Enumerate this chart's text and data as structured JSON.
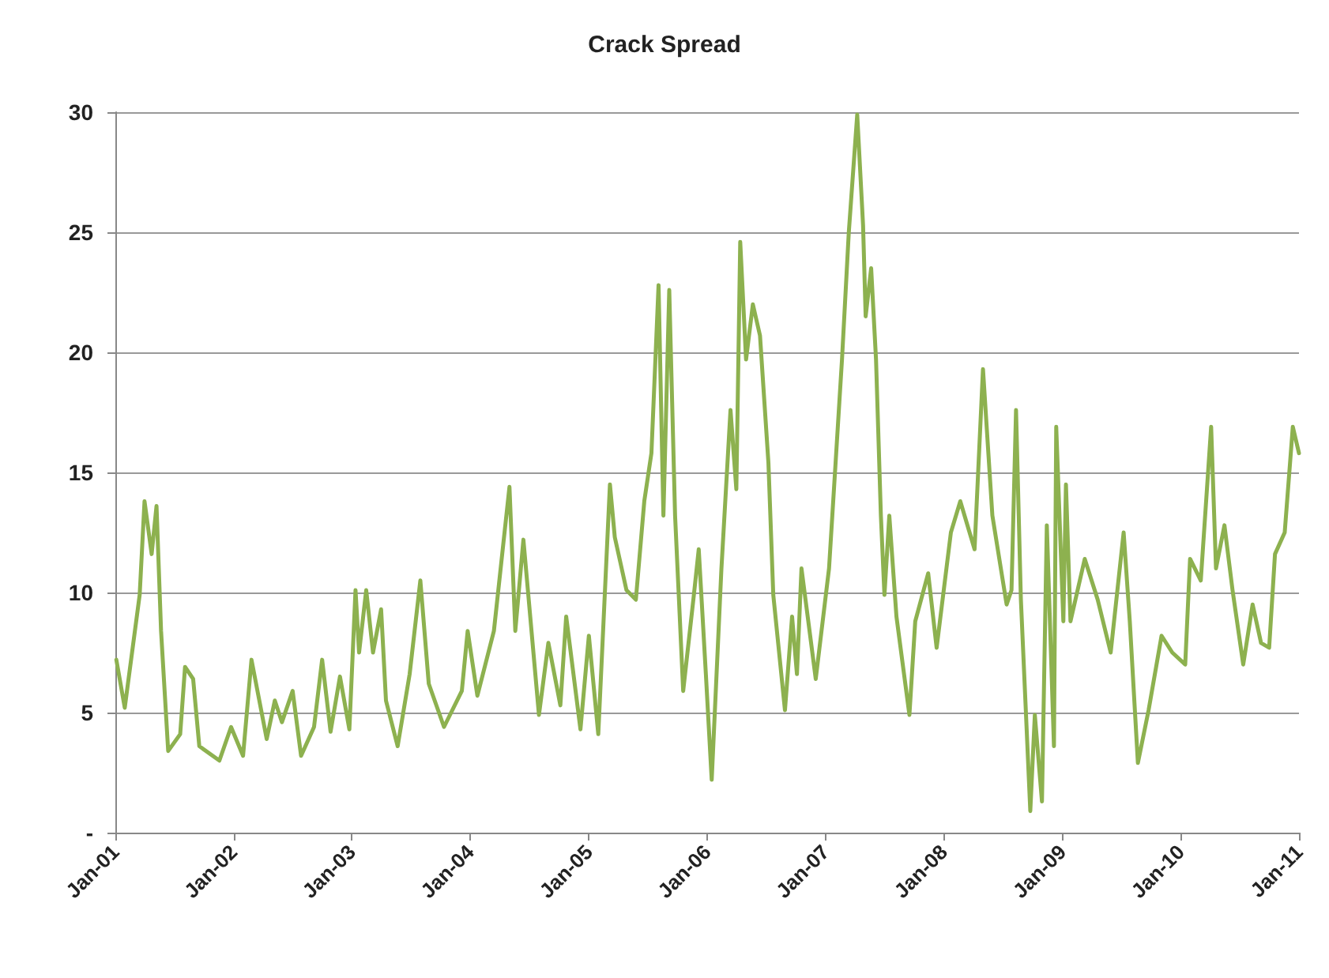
{
  "chart_data": {
    "type": "line",
    "title": "Crack Spread",
    "xlim": [
      "2001-01-01",
      "2011-01-01"
    ],
    "xticks": [
      {
        "value": "2001-01-01",
        "label": "Jan-01"
      },
      {
        "value": "2002-01-01",
        "label": "Jan-02"
      },
      {
        "value": "2003-01-01",
        "label": "Jan-03"
      },
      {
        "value": "2004-01-01",
        "label": "Jan-04"
      },
      {
        "value": "2005-01-01",
        "label": "Jan-05"
      },
      {
        "value": "2006-01-01",
        "label": "Jan-06"
      },
      {
        "value": "2007-01-01",
        "label": "Jan-07"
      },
      {
        "value": "2008-01-01",
        "label": "Jan-08"
      },
      {
        "value": "2009-01-01",
        "label": "Jan-09"
      },
      {
        "value": "2010-01-01",
        "label": "Jan-10"
      },
      {
        "value": "2011-01-01",
        "label": "Jan-11"
      }
    ],
    "ylim": [
      0,
      30
    ],
    "yticks": [
      {
        "value": 0,
        "label": "-"
      },
      5,
      10,
      15,
      20,
      25,
      30
    ],
    "grid": "y",
    "marker": "none",
    "line_style": "solid",
    "series": [
      {
        "color": "#8db14f",
        "x": [
          "2001-01-04",
          "2001-01-30",
          "2001-03-17",
          "2001-04-01",
          "2001-04-23",
          "2001-05-08",
          "2001-05-22",
          "2001-06-13",
          "2001-07-20",
          "2001-08-04",
          "2001-08-29",
          "2001-09-17",
          "2001-11-18",
          "2001-12-24",
          "2002-01-30",
          "2002-02-25",
          "2002-04-13",
          "2002-05-08",
          "2002-05-30",
          "2002-07-02",
          "2002-07-28",
          "2002-09-06",
          "2002-10-01",
          "2002-10-27",
          "2002-11-25",
          "2002-12-24",
          "2003-01-12",
          "2003-01-23",
          "2003-02-14",
          "2003-03-07",
          "2003-04-01",
          "2003-04-16",
          "2003-05-22",
          "2003-06-28",
          "2003-07-31",
          "2003-08-26",
          "2003-10-12",
          "2003-12-06",
          "2003-12-24",
          "2004-01-23",
          "2004-03-14",
          "2004-05-01",
          "2004-05-19",
          "2004-06-13",
          "2004-07-31",
          "2004-08-29",
          "2004-10-05",
          "2004-10-23",
          "2004-12-06",
          "2005-01-01",
          "2005-01-30",
          "2005-03-07",
          "2005-03-22",
          "2005-04-27",
          "2005-05-26",
          "2005-06-21",
          "2005-07-13",
          "2005-08-04",
          "2005-08-19",
          "2005-09-06",
          "2005-09-24",
          "2005-10-19",
          "2005-11-21",
          "2005-12-06",
          "2005-12-28",
          "2006-01-15",
          "2006-02-14",
          "2006-03-14",
          "2006-04-01",
          "2006-04-13",
          "2006-05-01",
          "2006-05-22",
          "2006-06-13",
          "2006-07-09",
          "2006-07-24",
          "2006-08-29",
          "2006-09-20",
          "2006-10-05",
          "2006-10-19",
          "2006-12-02",
          "2007-01-12",
          "2007-02-21",
          "2007-03-14",
          "2007-04-09",
          "2007-04-27",
          "2007-05-05",
          "2007-05-22",
          "2007-06-06",
          "2007-06-21",
          "2007-07-02",
          "2007-07-17",
          "2007-08-08",
          "2007-09-17",
          "2007-10-05",
          "2007-11-14",
          "2007-12-10",
          "2008-01-23",
          "2008-02-21",
          "2008-04-05",
          "2008-05-01",
          "2008-05-30",
          "2008-07-13",
          "2008-07-28",
          "2008-08-11",
          "2008-08-26",
          "2008-09-24",
          "2008-10-08",
          "2008-10-30",
          "2008-11-14",
          "2008-12-06",
          "2008-12-13",
          "2009-01-04",
          "2009-01-12",
          "2009-01-26",
          "2009-03-11",
          "2009-04-20",
          "2009-05-30",
          "2009-07-09",
          "2009-07-28",
          "2009-08-22",
          "2009-09-24",
          "2009-11-03",
          "2009-12-06",
          "2010-01-15",
          "2010-01-30",
          "2010-03-04",
          "2010-04-05",
          "2010-04-20",
          "2010-05-16",
          "2010-06-10",
          "2010-07-13",
          "2010-08-11",
          "2010-09-06",
          "2010-10-01",
          "2010-10-19",
          "2010-11-18",
          "2010-12-13",
          "2011-01-01"
        ],
        "values": [
          7.2,
          5.2,
          9.9,
          13.8,
          11.6,
          13.6,
          8.4,
          3.4,
          4.1,
          6.9,
          6.4,
          3.6,
          3.0,
          4.4,
          3.2,
          7.2,
          3.9,
          5.5,
          4.6,
          5.9,
          3.2,
          4.4,
          7.2,
          4.2,
          6.5,
          4.3,
          10.1,
          7.5,
          10.1,
          7.5,
          9.3,
          5.5,
          3.6,
          6.6,
          10.5,
          6.2,
          4.4,
          5.9,
          8.4,
          5.7,
          8.4,
          14.4,
          8.4,
          12.2,
          4.9,
          7.9,
          5.3,
          9.0,
          4.3,
          8.2,
          4.1,
          14.5,
          12.3,
          10.1,
          9.7,
          13.8,
          15.8,
          22.8,
          13.2,
          22.6,
          13.2,
          5.9,
          9.9,
          11.8,
          6.6,
          2.2,
          11.0,
          17.6,
          14.3,
          24.6,
          19.7,
          22.0,
          20.7,
          15.4,
          9.9,
          5.1,
          9.0,
          6.6,
          11.0,
          6.4,
          11.0,
          19.7,
          25.0,
          29.9,
          25.3,
          21.5,
          23.5,
          19.7,
          13.2,
          9.9,
          13.2,
          9.0,
          4.9,
          8.8,
          10.8,
          7.7,
          12.5,
          13.8,
          11.8,
          19.3,
          13.2,
          9.5,
          10.1,
          17.6,
          9.7,
          0.9,
          4.9,
          1.3,
          12.8,
          3.6,
          16.9,
          8.8,
          14.5,
          8.8,
          11.4,
          9.7,
          7.5,
          12.5,
          8.8,
          2.9,
          5.1,
          8.2,
          7.5,
          7.0,
          11.4,
          10.5,
          16.9,
          11.0,
          12.8,
          10.1,
          7.0,
          9.5,
          7.9,
          7.7,
          11.6,
          12.5,
          16.9,
          15.8
        ]
      }
    ]
  }
}
